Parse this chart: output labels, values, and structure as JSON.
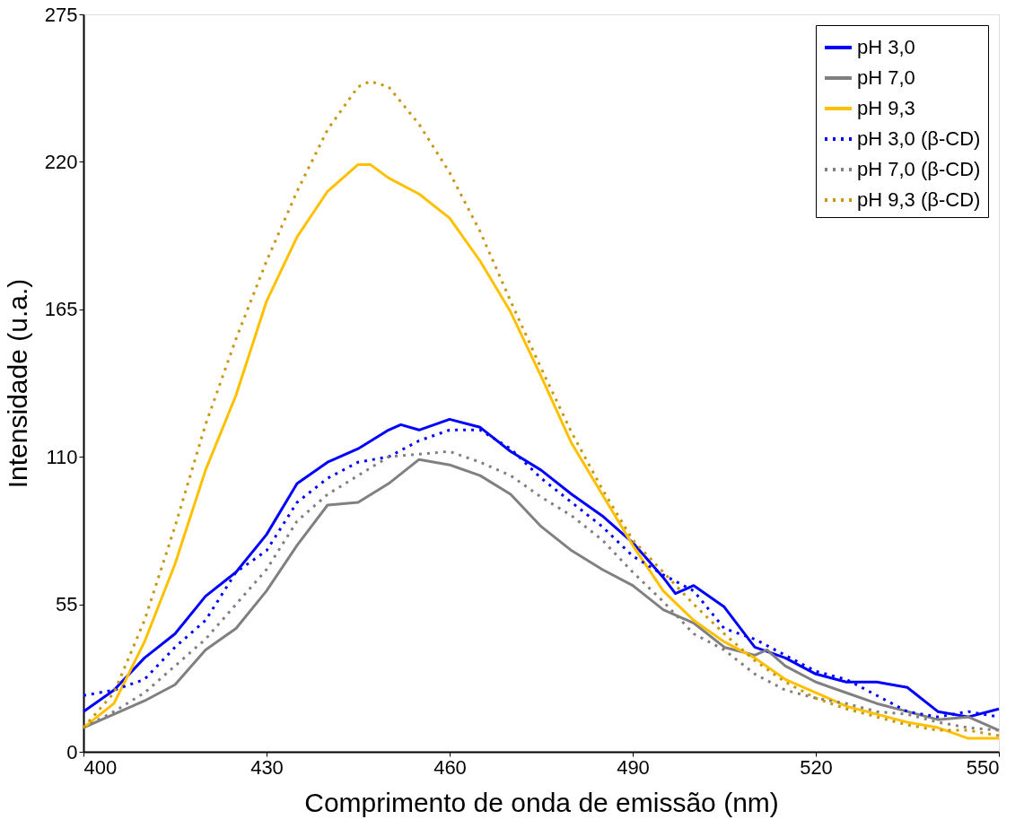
{
  "chart_data": {
    "type": "line",
    "xlabel": "Comprimento de onda de emissão (nm)",
    "ylabel": "Intensidade (u.a.)",
    "xlim": [
      400,
      550
    ],
    "xticks": [
      400,
      430,
      460,
      490,
      520,
      550
    ],
    "ylim": [
      0,
      275
    ],
    "yticks": [
      0,
      55,
      110,
      165,
      220,
      275
    ],
    "grid": false,
    "legend": "top right",
    "marker": "none",
    "x": [
      400,
      405,
      410,
      415,
      420,
      425,
      430,
      435,
      440,
      445,
      450,
      455,
      460,
      465,
      470,
      475,
      480,
      485,
      490,
      495,
      500,
      505,
      510,
      515,
      520,
      525,
      530,
      535,
      540,
      545,
      550
    ],
    "series": [
      {
        "name": "pH 3,0",
        "color": "#0000ff",
        "line_style": "solid",
        "x": [
          400,
          405,
          410,
          415,
          420,
          425,
          430,
          435,
          440,
          445,
          450,
          452,
          455,
          460,
          465,
          470,
          475,
          480,
          485,
          490,
          495,
          497,
          500,
          505,
          510,
          515,
          520,
          525,
          530,
          535,
          540,
          545,
          550
        ],
        "values": [
          15,
          23,
          35,
          44,
          58,
          67,
          81,
          100,
          108,
          113,
          120,
          122,
          120,
          124,
          121,
          112,
          105,
          96,
          88,
          78,
          65,
          59,
          62,
          54,
          39,
          35,
          29,
          26,
          26,
          24,
          15,
          13,
          16
        ]
      },
      {
        "name": "pH 7,0",
        "color": "#808080",
        "line_style": "solid",
        "x": [
          400,
          405,
          410,
          415,
          420,
          425,
          430,
          435,
          440,
          445,
          450,
          455,
          460,
          465,
          470,
          475,
          480,
          485,
          490,
          495,
          500,
          505,
          510,
          512,
          515,
          520,
          525,
          530,
          535,
          540,
          545,
          550
        ],
        "values": [
          9,
          14,
          19,
          25,
          38,
          46,
          60,
          77,
          92,
          93,
          100,
          109,
          107,
          103,
          96,
          84,
          75,
          68,
          62,
          53,
          48,
          39,
          36,
          38,
          32,
          26,
          22,
          18,
          15,
          12,
          13,
          8
        ]
      },
      {
        "name": "pH 9,3",
        "color": "#ffc000",
        "line_style": "solid",
        "x": [
          400,
          405,
          410,
          415,
          420,
          425,
          430,
          435,
          440,
          445,
          447,
          450,
          455,
          460,
          465,
          470,
          475,
          480,
          485,
          490,
          495,
          500,
          505,
          510,
          515,
          520,
          525,
          530,
          535,
          540,
          545,
          550
        ],
        "values": [
          9,
          18,
          41,
          70,
          105,
          133,
          168,
          192,
          209,
          219,
          219,
          214,
          208,
          199,
          183,
          164,
          140,
          115,
          96,
          77,
          60,
          49,
          41,
          35,
          27,
          22,
          17,
          14,
          11,
          9,
          5,
          5
        ]
      },
      {
        "name": "pH 3,0 (β-CD)",
        "color": "#0000ff",
        "line_style": "dotted",
        "values": [
          21,
          23,
          27,
          39,
          49,
          67,
          75,
          93,
          102,
          108,
          110,
          116,
          120,
          120,
          113,
          102,
          93,
          84,
          73,
          66,
          60,
          46,
          42,
          36,
          30,
          27,
          21,
          15,
          13,
          15,
          13
        ]
      },
      {
        "name": "pH 7,0 (β-CD)",
        "color": "#808080",
        "line_style": "dotted",
        "values": [
          9,
          15,
          22,
          32,
          42,
          55,
          68,
          86,
          96,
          103,
          110,
          111,
          112,
          108,
          103,
          95,
          88,
          79,
          67,
          56,
          44,
          38,
          29,
          23,
          20,
          18,
          15,
          14,
          11,
          9,
          8
        ]
      },
      {
        "name": "pH 9,3 (β-CD)",
        "color": "#c8960f",
        "line_style": "dotted",
        "x": [
          400,
          405,
          410,
          415,
          420,
          425,
          430,
          435,
          440,
          445,
          447,
          450,
          455,
          460,
          465,
          470,
          475,
          480,
          485,
          490,
          495,
          500,
          505,
          510,
          515,
          520,
          525,
          530,
          535,
          540,
          545,
          550
        ],
        "values": [
          9,
          22,
          49,
          84,
          122,
          154,
          183,
          209,
          232,
          248,
          250,
          248,
          234,
          216,
          194,
          168,
          143,
          119,
          98,
          79,
          67,
          55,
          44,
          34,
          26,
          20,
          16,
          13,
          10,
          8,
          8,
          6
        ]
      }
    ]
  }
}
